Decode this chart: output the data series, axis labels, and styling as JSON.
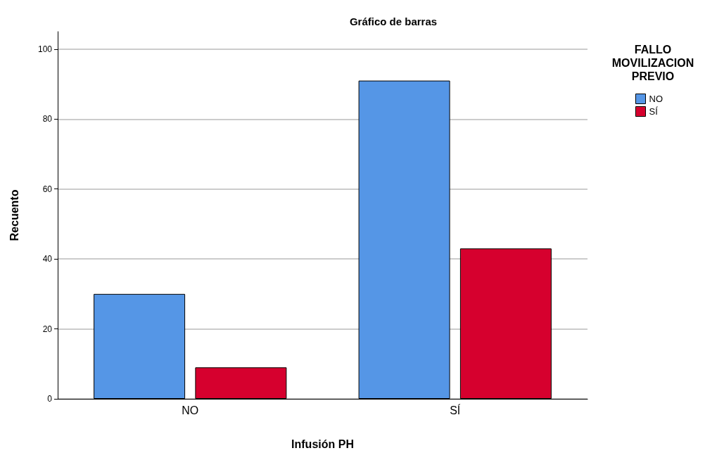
{
  "chart_data": {
    "type": "bar",
    "title": "Gráfico de barras",
    "xlabel": "Infusión PH",
    "ylabel": "Recuento",
    "legend_title": "FALLO\nMOVILIZACION\nPREVIO",
    "categories": [
      "NO",
      "SÍ"
    ],
    "series": [
      {
        "name": "NO",
        "color": "#5596e6",
        "values": [
          30,
          91
        ]
      },
      {
        "name": "SÍ",
        "color": "#d6002e",
        "values": [
          9,
          43
        ]
      }
    ],
    "ylim": [
      0,
      105
    ],
    "yticks": [
      0,
      20,
      40,
      60,
      80,
      100
    ],
    "grid": "y",
    "legend": "right"
  }
}
